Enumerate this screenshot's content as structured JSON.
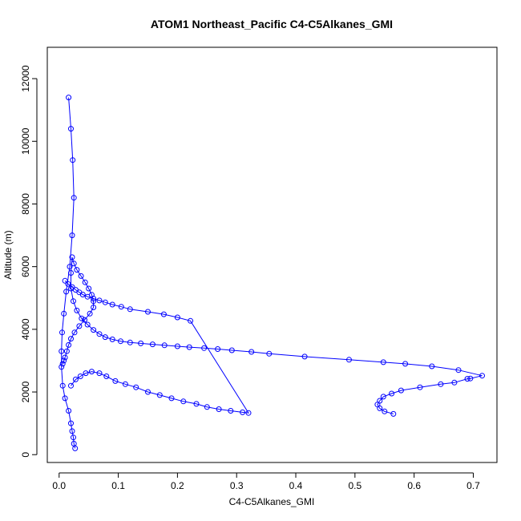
{
  "chart_data": {
    "type": "line",
    "title": "ATOM1 Northeast_Pacific C4-C5Alkanes_GMI",
    "xlabel": "C4-C5Alkanes_GMI",
    "ylabel": "Altitude (m)",
    "xlim": [
      -0.02,
      0.74
    ],
    "ylim": [
      -250,
      13000
    ],
    "xticks": [
      0.0,
      0.1,
      0.2,
      0.3,
      0.4,
      0.5,
      0.6,
      0.7
    ],
    "xtick_labels": [
      "0.0",
      "0.1",
      "0.2",
      "0.3",
      "0.4",
      "0.5",
      "0.6",
      "0.7"
    ],
    "yticks": [
      0,
      2000,
      4000,
      6000,
      8000,
      10000,
      12000
    ],
    "ytick_labels": [
      "0",
      "2000",
      "4000",
      "6000",
      "8000",
      "10000",
      "12000"
    ],
    "grid": false,
    "marker": "open-circle",
    "line_style": "line-with-points",
    "colors": {
      "series": "#0000ff",
      "axis": "#000000",
      "background": "#ffffff"
    },
    "series": [
      {
        "x": [
          0.027,
          0.025,
          0.024,
          0.022,
          0.02,
          0.016,
          0.01,
          0.006,
          0.004,
          0.004,
          0.005,
          0.008,
          0.012,
          0.018,
          0.022,
          0.025,
          0.023,
          0.02,
          0.016
        ],
        "y": [
          200,
          350,
          550,
          750,
          1000,
          1400,
          1800,
          2200,
          2800,
          3300,
          3900,
          4500,
          5200,
          6000,
          7000,
          8200,
          9400,
          10400,
          11400
        ]
      },
      {
        "x": [
          0.006,
          0.008,
          0.01,
          0.013,
          0.016,
          0.02,
          0.026,
          0.034,
          0.043,
          0.052,
          0.058,
          0.058,
          0.055,
          0.05,
          0.044,
          0.037,
          0.03,
          0.025,
          0.022,
          0.02,
          0.02,
          0.024,
          0.03,
          0.038,
          0.048,
          0.058,
          0.068,
          0.078,
          0.09,
          0.104,
          0.12,
          0.138,
          0.158,
          0.178,
          0.2,
          0.22,
          0.245,
          0.268,
          0.292,
          0.325,
          0.355,
          0.415,
          0.49,
          0.548,
          0.585,
          0.63,
          0.675,
          0.715,
          0.695,
          0.69,
          0.668,
          0.645,
          0.61,
          0.578,
          0.562,
          0.548,
          0.542,
          0.538,
          0.542,
          0.55,
          0.565
        ],
        "y": [
          2900,
          3000,
          3100,
          3300,
          3500,
          3700,
          3900,
          4100,
          4300,
          4500,
          4700,
          4900,
          5100,
          5300,
          5500,
          5700,
          5900,
          6100,
          6300,
          5800,
          5300,
          4900,
          4600,
          4350,
          4150,
          3980,
          3850,
          3750,
          3680,
          3620,
          3580,
          3550,
          3520,
          3490,
          3460,
          3430,
          3400,
          3370,
          3330,
          3280,
          3220,
          3130,
          3030,
          2950,
          2900,
          2820,
          2700,
          2520,
          2430,
          2420,
          2300,
          2250,
          2150,
          2050,
          1950,
          1850,
          1720,
          1600,
          1480,
          1380,
          1300
        ]
      },
      {
        "x": [
          0.02,
          0.028,
          0.036,
          0.045,
          0.055,
          0.068,
          0.08,
          0.095,
          0.112,
          0.13,
          0.15,
          0.17,
          0.19,
          0.21,
          0.232,
          0.25,
          0.27,
          0.29,
          0.31,
          0.32,
          0.222,
          0.2,
          0.177,
          0.15,
          0.12,
          0.105,
          0.09,
          0.078,
          0.068,
          0.058,
          0.048,
          0.04,
          0.034,
          0.028,
          0.022,
          0.015,
          0.01
        ],
        "y": [
          2200,
          2400,
          2500,
          2600,
          2650,
          2600,
          2500,
          2350,
          2250,
          2150,
          2000,
          1900,
          1800,
          1700,
          1620,
          1520,
          1450,
          1400,
          1350,
          1330,
          4270,
          4380,
          4480,
          4560,
          4640,
          4720,
          4790,
          4860,
          4920,
          4980,
          5040,
          5110,
          5180,
          5260,
          5350,
          5450,
          5550
        ]
      }
    ]
  }
}
